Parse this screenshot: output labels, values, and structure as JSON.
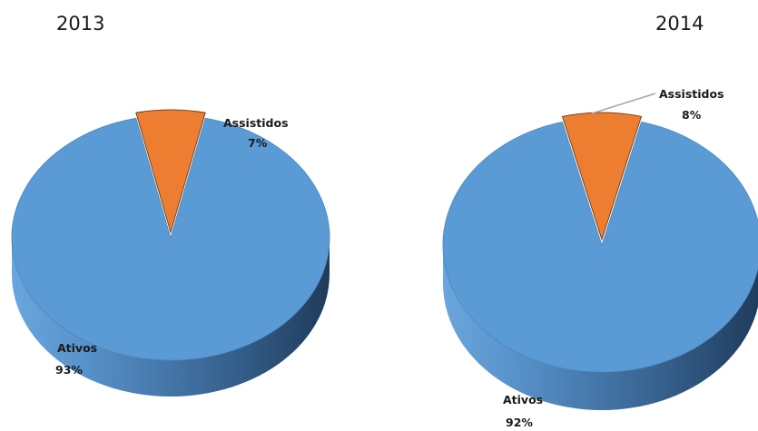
{
  "chart_data": [
    {
      "type": "pie",
      "title": "2013",
      "slices": [
        {
          "label": "Ativos",
          "value": 93,
          "display": "93%",
          "color": "#5b9bd5"
        },
        {
          "label": "Assistidos",
          "value": 7,
          "display": "7%",
          "color": "#ed7d31"
        }
      ]
    },
    {
      "type": "pie",
      "title": "2014",
      "slices": [
        {
          "label": "Ativos",
          "value": 92,
          "display": "92%",
          "color": "#5b9bd5"
        },
        {
          "label": "Assistidos",
          "value": 8,
          "display": "8%",
          "color": "#ed7d31"
        }
      ]
    }
  ]
}
